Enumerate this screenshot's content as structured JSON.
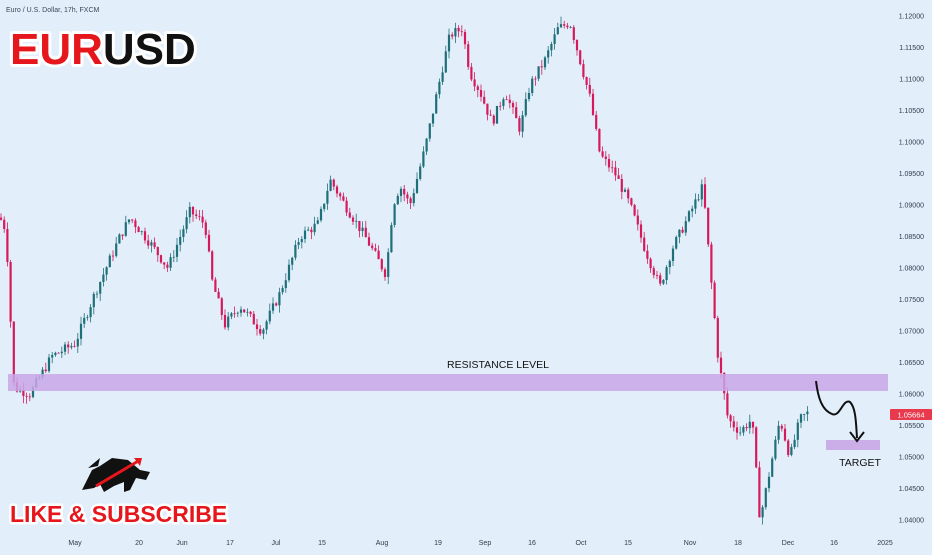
{
  "header": {
    "symbol_info": "Euro / U.S. Dollar, 17h, FXCM",
    "title_part1": "EUR",
    "title_part2": "USD"
  },
  "branding": {
    "logo_icon": "bull-logo-icon",
    "like_text": "LIKE & SUBSCRIBE"
  },
  "colors": {
    "background": "#e2effb",
    "bull_candle": "#1f6f78",
    "bear_candle": "#d5195a",
    "zone_fill": "#c9a6e6",
    "title_red": "#e5161c",
    "price_badge": "#e8394d"
  },
  "chart_data": {
    "type": "candlestick",
    "title": "Euro / U.S. Dollar, 17h, FXCM",
    "instrument": "EURUSD",
    "timeframe": "17h",
    "x_tick_labels": [
      "May",
      "20",
      "Jun",
      "17",
      "Jul",
      "15",
      "Aug",
      "19",
      "Sep",
      "16",
      "Oct",
      "15",
      "Nov",
      "18",
      "Dec",
      "16",
      "2025"
    ],
    "y_tick_labels": [
      "1.12000",
      "1.11500",
      "1.11000",
      "1.10500",
      "1.10000",
      "1.09500",
      "1.09000",
      "1.08500",
      "1.08000",
      "1.07500",
      "1.07000",
      "1.06500",
      "1.06000",
      "1.05500",
      "1.05000",
      "1.04500",
      "1.04000"
    ],
    "ylim": [
      1.038,
      1.1215
    ],
    "current_price": "1.05664",
    "approx_closes": [
      {
        "x": "early Apr",
        "y": 1.088
      },
      {
        "x": "mid Apr",
        "y": 1.061
      },
      {
        "x": "May",
        "y": 1.066
      },
      {
        "x": "20",
        "y": 1.086
      },
      {
        "x": "Jun",
        "y": 1.089
      },
      {
        "x": "17",
        "y": 1.07
      },
      {
        "x": "Jul",
        "y": 1.074
      },
      {
        "x": "15",
        "y": 1.089
      },
      {
        "x": "Aug",
        "y": 1.092
      },
      {
        "x": "19",
        "y": 1.118
      },
      {
        "x": "Sep",
        "y": 1.106
      },
      {
        "x": "16",
        "y": 1.113
      },
      {
        "x": "late Sep",
        "y": 1.119
      },
      {
        "x": "Oct",
        "y": 1.098
      },
      {
        "x": "15",
        "y": 1.088
      },
      {
        "x": "Nov",
        "y": 1.09
      },
      {
        "x": "18",
        "y": 1.052
      },
      {
        "x": "late Nov",
        "y": 1.04
      },
      {
        "x": "Dec",
        "y": 1.056
      }
    ],
    "annotations": [
      {
        "type": "zone",
        "label": "RESISTANCE LEVEL",
        "y_range": [
          1.0605,
          1.0628
        ]
      },
      {
        "type": "zone",
        "label": "TARGET",
        "y_range": [
          1.051,
          1.052
        ]
      },
      {
        "type": "arrow",
        "direction": "down",
        "from": 1.0605,
        "to": 1.052
      }
    ]
  }
}
